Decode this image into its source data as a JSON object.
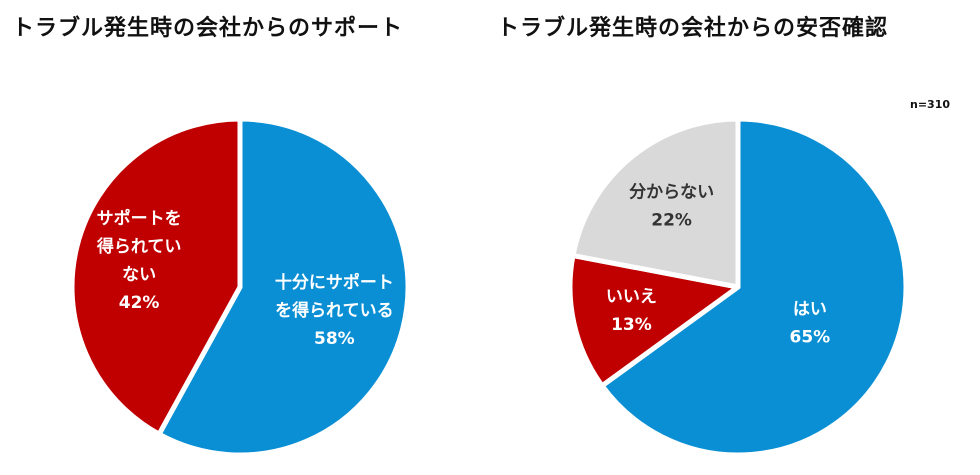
{
  "chart_data": [
    {
      "type": "pie",
      "title": "トラブル発生時の会社からのサポート",
      "slices": [
        {
          "label_lines": [
            "十分にサポート",
            "を得られている"
          ],
          "value": 58,
          "value_label": "58%",
          "color": "#0a8fd4",
          "text_color": "#ffffff"
        },
        {
          "label_lines": [
            "サポートを",
            "得られてい",
            "ない"
          ],
          "value": 42,
          "value_label": "42%",
          "color": "#c00000",
          "text_color": "#ffffff"
        }
      ]
    },
    {
      "type": "pie",
      "title": "トラブル発生時の会社からの安否確認",
      "note": "n=310",
      "slices": [
        {
          "label_lines": [
            "はい"
          ],
          "value": 65,
          "value_label": "65%",
          "color": "#0a8fd4",
          "text_color": "#ffffff"
        },
        {
          "label_lines": [
            "いいえ"
          ],
          "value": 13,
          "value_label": "13%",
          "color": "#c00000",
          "text_color": "#ffffff"
        },
        {
          "label_lines": [
            "分からない"
          ],
          "value": 22,
          "value_label": "22%",
          "color": "#d9d9d9",
          "text_color": "#333333"
        }
      ]
    }
  ]
}
